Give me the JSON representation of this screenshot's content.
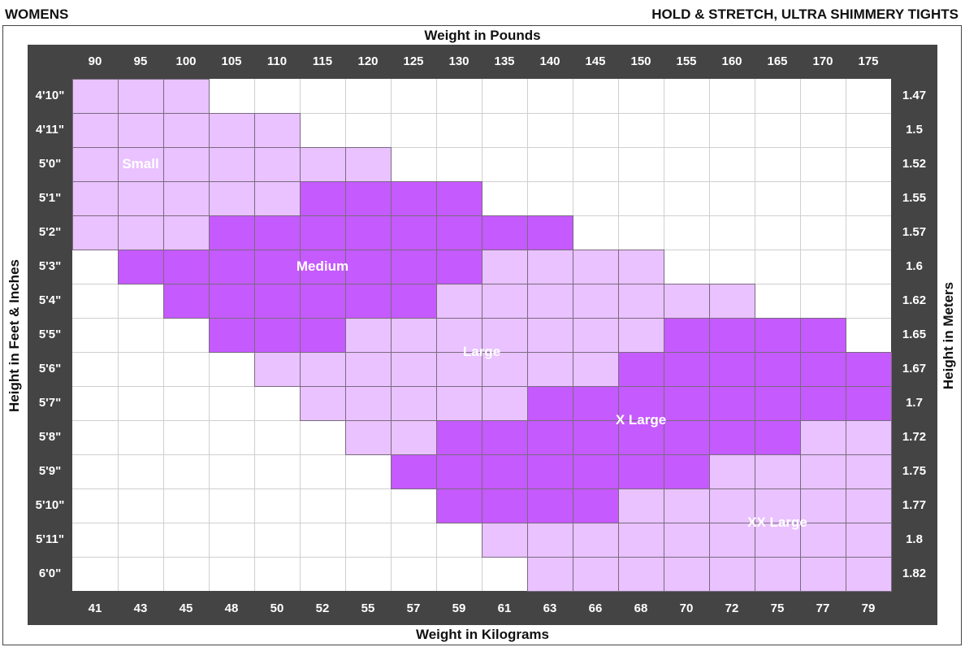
{
  "header": {
    "left": "WOMENS",
    "right": "HOLD & STRETCH, ULTRA SHIMMERY TIGHTS"
  },
  "colors": {
    "panel": "#444444",
    "light": "#e9c2ff",
    "dark": "#c55aff",
    "grid": "#cfcfcf"
  },
  "chart_data": {
    "type": "heatmap",
    "title": "",
    "xlabel_top": "Weight in Pounds",
    "xlabel_bottom": "Weight in Kilograms",
    "ylabel_left": "Height in Feet & Inches",
    "ylabel_right": "Height in Meters",
    "x_pounds": [
      "90",
      "95",
      "100",
      "105",
      "110",
      "115",
      "120",
      "125",
      "130",
      "135",
      "140",
      "145",
      "150",
      "155",
      "160",
      "165",
      "170",
      "175"
    ],
    "x_kilograms": [
      "41",
      "43",
      "45",
      "48",
      "50",
      "52",
      "55",
      "57",
      "59",
      "61",
      "63",
      "66",
      "68",
      "70",
      "72",
      "75",
      "77",
      "79"
    ],
    "y_feet_inches": [
      "4'10\"",
      "4'11\"",
      "5'0\"",
      "5'1\"",
      "5'2\"",
      "5'3\"",
      "5'4\"",
      "5'5\"",
      "5'6\"",
      "5'7\"",
      "5'8\"",
      "5'9\"",
      "5'10\"",
      "5'11\"",
      "6'0\""
    ],
    "y_meters": [
      "1.47",
      "1.5",
      "1.52",
      "1.55",
      "1.57",
      "1.6",
      "1.62",
      "1.65",
      "1.67",
      "1.7",
      "1.72",
      "1.75",
      "1.77",
      "1.8",
      "1.82"
    ],
    "sizes": [
      {
        "name": "Small",
        "shade": "light",
        "label_at": {
          "x": "95",
          "y": "5'0\""
        },
        "rows": {
          "4'10\"": [
            "90",
            "100"
          ],
          "4'11\"": [
            "90",
            "110"
          ],
          "5'0\"": [
            "90",
            "120"
          ],
          "5'1\"": [
            "90",
            "110"
          ],
          "5'2\"": [
            "90",
            "100"
          ]
        }
      },
      {
        "name": "Medium",
        "shade": "dark",
        "label_at": {
          "x": "115",
          "y": "5'3\""
        },
        "rows": {
          "5'1\"": [
            "115",
            "130"
          ],
          "5'2\"": [
            "105",
            "140"
          ],
          "5'3\"": [
            "95",
            "130"
          ],
          "5'4\"": [
            "100",
            "125"
          ],
          "5'5\"": [
            "105",
            "115"
          ]
        }
      },
      {
        "name": "Large",
        "shade": "light",
        "label_at": {
          "x": "132.5",
          "y": "5'5.5\""
        },
        "rows": {
          "5'3\"": [
            "135",
            "150"
          ],
          "5'4\"": [
            "130",
            "160"
          ],
          "5'5\"": [
            "120",
            "150"
          ],
          "5'6\"": [
            "110",
            "145"
          ],
          "5'7\"": [
            "115",
            "135"
          ],
          "5'8\"": [
            "120",
            "125"
          ]
        }
      },
      {
        "name": "X Large",
        "shade": "dark",
        "label_at": {
          "x": "150",
          "y": "5'7.5\""
        },
        "rows": {
          "5'5\"": [
            "155",
            "170"
          ],
          "5'6\"": [
            "150",
            "175"
          ],
          "5'7\"": [
            "140",
            "175"
          ],
          "5'8\"": [
            "130",
            "165"
          ],
          "5'9\"": [
            "125",
            "155"
          ],
          "5'10\"": [
            "130",
            "145"
          ]
        }
      },
      {
        "name": "XX Large",
        "shade": "light",
        "label_at": {
          "x": "165",
          "y": "5'10.5\""
        },
        "rows": {
          "5'8\"": [
            "170",
            "175"
          ],
          "5'9\"": [
            "160",
            "175"
          ],
          "5'10\"": [
            "150",
            "175"
          ],
          "5'11\"": [
            "135",
            "175"
          ],
          "6'0\"": [
            "140",
            "175"
          ]
        }
      }
    ]
  }
}
